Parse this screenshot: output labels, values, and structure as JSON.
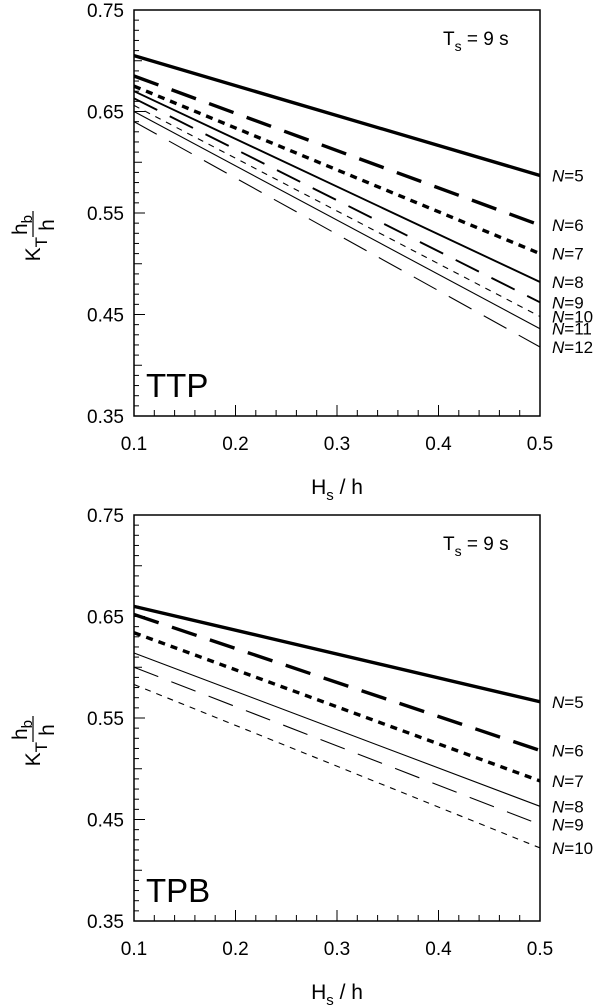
{
  "chart_data": [
    {
      "type": "line",
      "panel_label": "TTP",
      "annotation": {
        "prefix": "T",
        "sub": "s",
        "suffix": " = 9 s"
      },
      "xlabel": {
        "main": "H",
        "sub": "s",
        "suffix": " / h"
      },
      "ylabel": {
        "k": "K",
        "t": "T",
        "num_main": "h",
        "num_sub": "b",
        "den": "h"
      },
      "xlim": [
        0.1,
        0.5
      ],
      "ylim": [
        0.35,
        0.75
      ],
      "xticks": [
        "0.1",
        "0.2",
        "0.3",
        "0.4",
        "0.5"
      ],
      "yticks": [
        "0.35",
        "0.45",
        "0.55",
        "0.65",
        "0.75"
      ],
      "series": [
        {
          "name": "N=5",
          "name_var": "N",
          "name_val": "=5",
          "style": "thick-solid",
          "x": [
            0.1,
            0.5
          ],
          "y": [
            0.705,
            0.587
          ]
        },
        {
          "name": "N=6",
          "name_var": "N",
          "name_val": "=6",
          "style": "thick-dash",
          "x": [
            0.1,
            0.5
          ],
          "y": [
            0.685,
            0.538
          ]
        },
        {
          "name": "N=7",
          "name_var": "N",
          "name_val": "=7",
          "style": "thick-dot",
          "x": [
            0.1,
            0.5
          ],
          "y": [
            0.675,
            0.51
          ]
        },
        {
          "name": "N=8",
          "name_var": "N",
          "name_val": "=8",
          "style": "medium-solid",
          "x": [
            0.1,
            0.5
          ],
          "y": [
            0.67,
            0.482
          ]
        },
        {
          "name": "N=9",
          "name_var": "N",
          "name_val": "=9",
          "style": "medium-dash",
          "x": [
            0.1,
            0.5
          ],
          "y": [
            0.663,
            0.462
          ]
        },
        {
          "name": "N=10",
          "name_var": "N",
          "name_val": "=10",
          "style": "thin-dot",
          "x": [
            0.1,
            0.5
          ],
          "y": [
            0.656,
            0.448
          ]
        },
        {
          "name": "N=11",
          "name_var": "N",
          "name_val": "=11",
          "style": "thin-solid",
          "x": [
            0.1,
            0.5
          ],
          "y": [
            0.65,
            0.436
          ]
        },
        {
          "name": "N=12",
          "name_var": "N",
          "name_val": "=12",
          "style": "thin-dash",
          "x": [
            0.1,
            0.5
          ],
          "y": [
            0.64,
            0.418
          ]
        }
      ]
    },
    {
      "type": "line",
      "panel_label": "TPB",
      "annotation": {
        "prefix": "T",
        "sub": "s",
        "suffix": " = 9 s"
      },
      "xlabel": {
        "main": "H",
        "sub": "s",
        "suffix": " / h"
      },
      "ylabel": {
        "k": "K",
        "t": "T",
        "num_main": "h",
        "num_sub": "b",
        "den": "h"
      },
      "xlim": [
        0.1,
        0.5
      ],
      "ylim": [
        0.35,
        0.75
      ],
      "xticks": [
        "0.1",
        "0.2",
        "0.3",
        "0.4",
        "0.5"
      ],
      "yticks": [
        "0.35",
        "0.45",
        "0.55",
        "0.65",
        "0.75"
      ],
      "series": [
        {
          "name": "N=5",
          "name_var": "N",
          "name_val": "=5",
          "style": "thick-solid",
          "x": [
            0.1,
            0.5
          ],
          "y": [
            0.66,
            0.566
          ]
        },
        {
          "name": "N=6",
          "name_var": "N",
          "name_val": "=6",
          "style": "thick-dash",
          "x": [
            0.1,
            0.5
          ],
          "y": [
            0.652,
            0.518
          ]
        },
        {
          "name": "N=7",
          "name_var": "N",
          "name_val": "=7",
          "style": "thick-dot",
          "x": [
            0.1,
            0.5
          ],
          "y": [
            0.634,
            0.488
          ]
        },
        {
          "name": "N=8",
          "name_var": "N",
          "name_val": "=8",
          "style": "thin-solid",
          "x": [
            0.1,
            0.5
          ],
          "y": [
            0.614,
            0.463
          ]
        },
        {
          "name": "N=9",
          "name_var": "N",
          "name_val": "=9",
          "style": "thin-dash",
          "x": [
            0.1,
            0.5
          ],
          "y": [
            0.6,
            0.445
          ]
        },
        {
          "name": "N=10",
          "name_var": "N",
          "name_val": "=10",
          "style": "thin-dot",
          "x": [
            0.1,
            0.5
          ],
          "y": [
            0.583,
            0.422
          ]
        }
      ]
    }
  ]
}
